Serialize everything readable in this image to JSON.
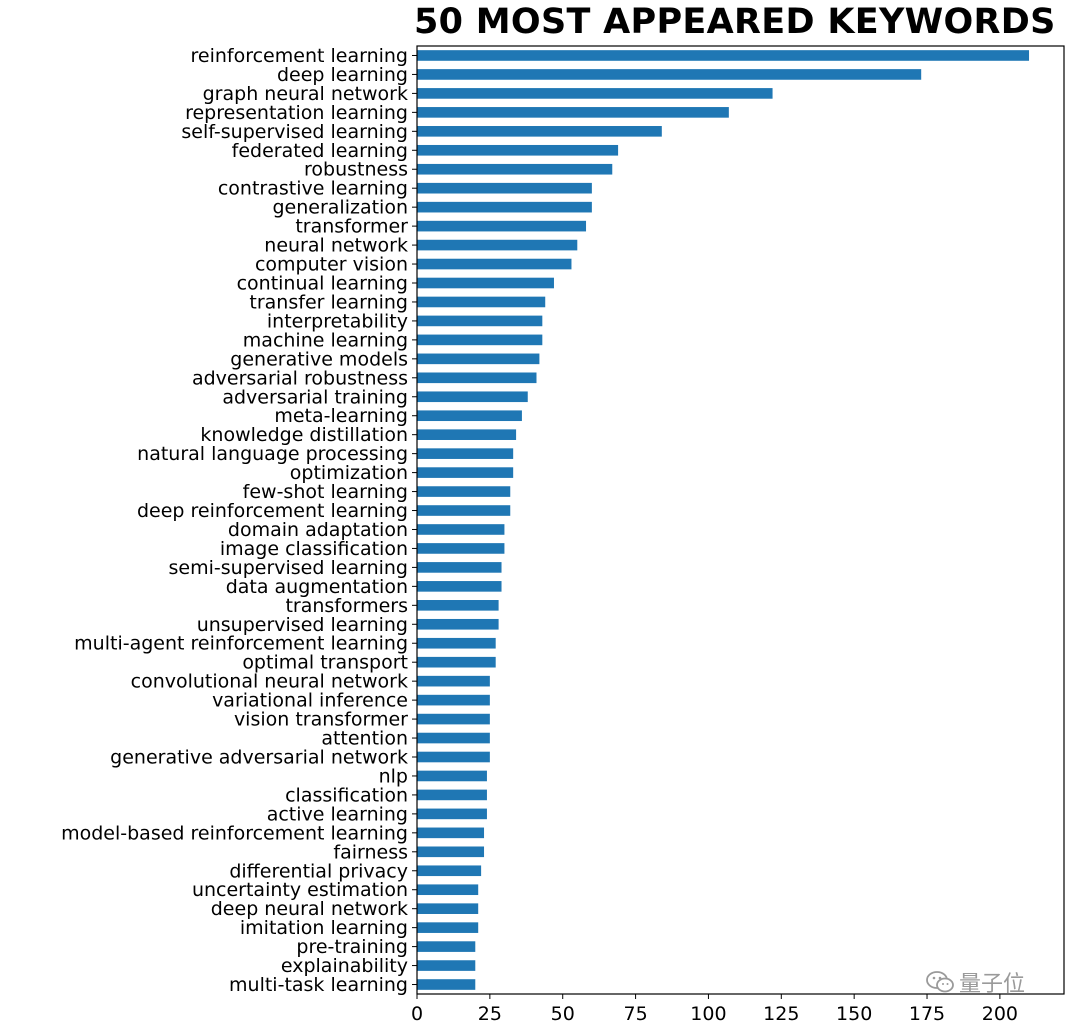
{
  "watermark": "量子位",
  "chart_data": {
    "type": "bar",
    "orientation": "horizontal",
    "title": "50 MOST APPEARED KEYWORDS",
    "xlabel": "",
    "ylabel": "",
    "xlim": [
      0,
      222
    ],
    "xticks": [
      0,
      25,
      50,
      75,
      100,
      125,
      150,
      175,
      200
    ],
    "grid": false,
    "bar_color": "#1f77b4",
    "categories": [
      "reinforcement learning",
      "deep learning",
      "graph neural network",
      "representation learning",
      "self-supervised learning",
      "federated learning",
      "robustness",
      "contrastive learning",
      "generalization",
      "transformer",
      "neural network",
      "computer vision",
      "continual learning",
      "transfer learning",
      "interpretability",
      "machine learning",
      "generative models",
      "adversarial robustness",
      "adversarial training",
      "meta-learning",
      "knowledge distillation",
      "natural language processing",
      "optimization",
      "few-shot learning",
      "deep reinforcement learning",
      "domain adaptation",
      "image classification",
      "semi-supervised learning",
      "data augmentation",
      "transformers",
      "unsupervised learning",
      "multi-agent reinforcement learning",
      "optimal transport",
      "convolutional neural network",
      "variational inference",
      "vision transformer",
      "attention",
      "generative adversarial network",
      "nlp",
      "classification",
      "active learning",
      "model-based reinforcement learning",
      "fairness",
      "differential privacy",
      "uncertainty estimation",
      "deep neural network",
      "imitation learning",
      "pre-training",
      "explainability",
      "multi-task learning"
    ],
    "values": [
      210,
      173,
      122,
      107,
      84,
      69,
      67,
      60,
      60,
      58,
      55,
      53,
      47,
      44,
      43,
      43,
      42,
      41,
      38,
      36,
      34,
      33,
      33,
      32,
      32,
      30,
      30,
      29,
      29,
      28,
      28,
      27,
      27,
      25,
      25,
      25,
      25,
      25,
      24,
      24,
      24,
      23,
      23,
      22,
      21,
      21,
      21,
      20,
      20,
      20
    ]
  }
}
